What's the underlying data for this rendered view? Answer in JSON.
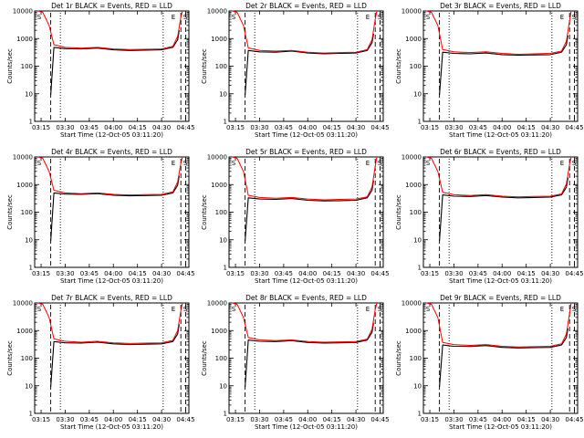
{
  "colors": {
    "events": "#000000",
    "lld": "#ff0000",
    "background": "#ffffff",
    "axes": "#000000"
  },
  "chart_data": [
    {
      "type": "line",
      "title": "Det 1r BLACK = Events, RED = LLD",
      "xlabel": "Start Time (12-Oct-05 03:11:20)",
      "ylabel": "Counts/sec",
      "yscale": "log",
      "ylim": [
        1,
        10000
      ],
      "x_tick_labels": [
        "03:15",
        "03:30",
        "03:45",
        "04:00",
        "04:15",
        "04:30",
        "04:45"
      ],
      "y_tick_labels": [
        "1",
        "10",
        "100",
        "1000",
        "10000"
      ],
      "markers": [
        "S",
        "E",
        "S"
      ],
      "vlines": {
        "dashed": [
          "03:21",
          "04:42",
          "04:45"
        ],
        "dotted": [
          "03:27",
          "04:31"
        ]
      },
      "series": [
        {
          "color": "#000000",
          "x": [
            "03:21",
            "03:23",
            "03:30",
            "03:40",
            "03:50",
            "04:00",
            "04:10",
            "04:20",
            "04:30",
            "04:37",
            "04:40",
            "04:41"
          ],
          "values": [
            9,
            480,
            430,
            420,
            450,
            390,
            370,
            380,
            390,
            480,
            900,
            2000
          ]
        },
        {
          "color": "#ff0000",
          "x": [
            "03:13",
            "03:16",
            "03:20",
            "03:23",
            "03:30",
            "03:40",
            "03:50",
            "04:00",
            "04:10",
            "04:20",
            "04:30",
            "04:37",
            "04:40",
            "04:42",
            "04:43"
          ],
          "values": [
            10000,
            9000,
            3000,
            600,
            480,
            450,
            480,
            420,
            400,
            410,
            420,
            520,
            1200,
            6000,
            10000
          ]
        }
      ]
    },
    {
      "type": "line",
      "title": "Det 2r BLACK = Events, RED = LLD",
      "xlabel": "Start Time (12-Oct-05 03:11:20)",
      "ylabel": "Counts/sec",
      "yscale": "log",
      "ylim": [
        1,
        10000
      ],
      "x_tick_labels": [
        "03:15",
        "03:30",
        "03:45",
        "04:00",
        "04:15",
        "04:30",
        "04:45"
      ],
      "y_tick_labels": [
        "1",
        "10",
        "100",
        "1000",
        "10000"
      ],
      "markers": [
        "S",
        "E",
        "S"
      ],
      "vlines": {
        "dashed": [
          "03:21",
          "04:42",
          "04:45"
        ],
        "dotted": [
          "03:27",
          "04:31"
        ]
      },
      "series": [
        {
          "color": "#000000",
          "x": [
            "03:21",
            "03:23",
            "03:30",
            "03:40",
            "03:50",
            "04:00",
            "04:10",
            "04:20",
            "04:30",
            "04:37",
            "04:40",
            "04:41"
          ],
          "values": [
            9,
            370,
            330,
            320,
            350,
            300,
            280,
            290,
            300,
            370,
            700,
            1500
          ]
        },
        {
          "color": "#ff0000",
          "x": [
            "03:13",
            "03:16",
            "03:20",
            "03:23",
            "03:30",
            "03:40",
            "03:50",
            "04:00",
            "04:10",
            "04:20",
            "04:30",
            "04:37",
            "04:40",
            "04:42",
            "04:43"
          ],
          "values": [
            10000,
            9000,
            3000,
            460,
            370,
            350,
            370,
            320,
            300,
            310,
            320,
            400,
            900,
            5000,
            10000
          ]
        }
      ]
    },
    {
      "type": "line",
      "title": "Det 3r BLACK = Events, RED = LLD",
      "xlabel": "Start Time (12-Oct-05 03:11:20)",
      "ylabel": "Counts/sec",
      "yscale": "log",
      "ylim": [
        1,
        10000
      ],
      "x_tick_labels": [
        "03:15",
        "03:30",
        "03:45",
        "04:00",
        "04:15",
        "04:30",
        "04:45"
      ],
      "y_tick_labels": [
        "1",
        "10",
        "100",
        "1000",
        "10000"
      ],
      "markers": [
        "S",
        "E",
        "S"
      ],
      "vlines": {
        "dashed": [
          "03:21",
          "04:42",
          "04:45"
        ],
        "dotted": [
          "03:27",
          "04:31"
        ]
      },
      "series": [
        {
          "color": "#000000",
          "x": [
            "03:21",
            "03:23",
            "03:30",
            "03:40",
            "03:50",
            "04:00",
            "04:10",
            "04:20",
            "04:30",
            "04:37",
            "04:40",
            "04:41"
          ],
          "values": [
            9,
            320,
            290,
            280,
            300,
            260,
            250,
            255,
            260,
            320,
            600,
            1300
          ]
        },
        {
          "color": "#ff0000",
          "x": [
            "03:13",
            "03:16",
            "03:20",
            "03:23",
            "03:30",
            "03:40",
            "03:50",
            "04:00",
            "04:10",
            "04:20",
            "04:30",
            "04:37",
            "04:40",
            "04:42",
            "04:43"
          ],
          "values": [
            10000,
            9000,
            3000,
            400,
            330,
            310,
            330,
            290,
            270,
            280,
            290,
            350,
            800,
            4500,
            10000
          ]
        }
      ]
    },
    {
      "type": "line",
      "title": "Det 4r BLACK = Events, RED = LLD",
      "xlabel": "Start Time (12-Oct-05 03:11:20)",
      "ylabel": "Counts/sec",
      "yscale": "log",
      "ylim": [
        1,
        10000
      ],
      "x_tick_labels": [
        "03:15",
        "03:30",
        "03:45",
        "04:00",
        "04:15",
        "04:30",
        "04:45"
      ],
      "y_tick_labels": [
        "1",
        "10",
        "100",
        "1000",
        "10000"
      ],
      "markers": [
        "S",
        "E",
        "S"
      ],
      "vlines": {
        "dashed": [
          "03:21",
          "04:42",
          "04:45"
        ],
        "dotted": [
          "03:27",
          "04:31"
        ]
      },
      "series": [
        {
          "color": "#000000",
          "x": [
            "03:21",
            "03:23",
            "03:30",
            "03:40",
            "03:50",
            "04:00",
            "04:10",
            "04:20",
            "04:30",
            "04:37",
            "04:40",
            "04:41"
          ],
          "values": [
            9,
            500,
            450,
            440,
            470,
            410,
            390,
            400,
            410,
            500,
            950,
            2100
          ]
        },
        {
          "color": "#ff0000",
          "x": [
            "03:13",
            "03:16",
            "03:20",
            "03:23",
            "03:30",
            "03:40",
            "03:50",
            "04:00",
            "04:10",
            "04:20",
            "04:30",
            "04:37",
            "04:40",
            "04:42",
            "04:43"
          ],
          "values": [
            10000,
            9000,
            3000,
            620,
            500,
            470,
            500,
            440,
            420,
            430,
            440,
            540,
            1250,
            6000,
            10000
          ]
        }
      ]
    },
    {
      "type": "line",
      "title": "Det 5r BLACK = Events, RED = LLD",
      "xlabel": "Start Time (12-Oct-05 03:11:20)",
      "ylabel": "Counts/sec",
      "yscale": "log",
      "ylim": [
        1,
        10000
      ],
      "x_tick_labels": [
        "03:15",
        "03:30",
        "03:45",
        "04:00",
        "04:15",
        "04:30",
        "04:45"
      ],
      "y_tick_labels": [
        "1",
        "10",
        "100",
        "1000",
        "10000"
      ],
      "markers": [
        "S",
        "E",
        "S"
      ],
      "vlines": {
        "dashed": [
          "03:21",
          "04:42",
          "04:45"
        ],
        "dotted": [
          "03:27",
          "04:31"
        ]
      },
      "series": [
        {
          "color": "#000000",
          "x": [
            "03:21",
            "03:23",
            "03:30",
            "03:40",
            "03:50",
            "04:00",
            "04:10",
            "04:20",
            "04:30",
            "04:37",
            "04:40",
            "04:41"
          ],
          "values": [
            9,
            330,
            300,
            290,
            310,
            270,
            255,
            260,
            270,
            330,
            620,
            1400
          ]
        },
        {
          "color": "#ff0000",
          "x": [
            "03:13",
            "03:16",
            "03:20",
            "03:23",
            "03:30",
            "03:40",
            "03:50",
            "04:00",
            "04:10",
            "04:20",
            "04:30",
            "04:37",
            "04:40",
            "04:42",
            "04:43"
          ],
          "values": [
            10000,
            9000,
            3000,
            410,
            340,
            320,
            340,
            300,
            280,
            290,
            300,
            360,
            820,
            4600,
            10000
          ]
        }
      ]
    },
    {
      "type": "line",
      "title": "Det 6r BLACK = Events, RED = LLD",
      "xlabel": "Start Time (12-Oct-05 03:11:20)",
      "ylabel": "Counts/sec",
      "yscale": "log",
      "ylim": [
        1,
        10000
      ],
      "x_tick_labels": [
        "03:15",
        "03:30",
        "03:45",
        "04:00",
        "04:15",
        "04:30",
        "04:45"
      ],
      "y_tick_labels": [
        "1",
        "10",
        "100",
        "1000",
        "10000"
      ],
      "markers": [
        "S",
        "E",
        "S"
      ],
      "vlines": {
        "dashed": [
          "03:21",
          "04:42",
          "04:45"
        ],
        "dotted": [
          "03:27",
          "04:31"
        ]
      },
      "series": [
        {
          "color": "#000000",
          "x": [
            "03:21",
            "03:23",
            "03:30",
            "03:40",
            "03:50",
            "04:00",
            "04:10",
            "04:20",
            "04:30",
            "04:37",
            "04:40",
            "04:41"
          ],
          "values": [
            9,
            420,
            380,
            370,
            400,
            350,
            330,
            340,
            350,
            420,
            800,
            1800
          ]
        },
        {
          "color": "#ff0000",
          "x": [
            "03:13",
            "03:16",
            "03:20",
            "03:23",
            "03:30",
            "03:40",
            "03:50",
            "04:00",
            "04:10",
            "04:20",
            "04:30",
            "04:37",
            "04:40",
            "04:42",
            "04:43"
          ],
          "values": [
            10000,
            9000,
            3000,
            520,
            430,
            400,
            430,
            380,
            360,
            370,
            380,
            460,
            1050,
            5500,
            10000
          ]
        }
      ]
    },
    {
      "type": "line",
      "title": "Det 7r BLACK = Events, RED = LLD",
      "xlabel": "Start Time (12-Oct-05 03:11:20)",
      "ylabel": "Counts/sec",
      "yscale": "log",
      "ylim": [
        1,
        10000
      ],
      "x_tick_labels": [
        "03:15",
        "03:30",
        "03:45",
        "04:00",
        "04:15",
        "04:30",
        "04:45"
      ],
      "y_tick_labels": [
        "1",
        "10",
        "100",
        "1000",
        "10000"
      ],
      "markers": [
        "S",
        "E",
        "S"
      ],
      "vlines": {
        "dashed": [
          "03:21",
          "04:42",
          "04:45"
        ],
        "dotted": [
          "03:27",
          "04:31"
        ]
      },
      "series": [
        {
          "color": "#000000",
          "x": [
            "03:21",
            "03:23",
            "03:30",
            "03:40",
            "03:50",
            "04:00",
            "04:10",
            "04:20",
            "04:30",
            "04:37",
            "04:40",
            "04:41"
          ],
          "values": [
            9,
            400,
            360,
            350,
            380,
            330,
            310,
            320,
            330,
            400,
            760,
            1700
          ]
        },
        {
          "color": "#ff0000",
          "x": [
            "03:13",
            "03:16",
            "03:20",
            "03:23",
            "03:30",
            "03:40",
            "03:50",
            "04:00",
            "04:10",
            "04:20",
            "04:30",
            "04:37",
            "04:40",
            "04:42",
            "04:43"
          ],
          "values": [
            10000,
            9000,
            3000,
            500,
            410,
            380,
            410,
            360,
            340,
            350,
            360,
            440,
            1000,
            5300,
            10000
          ]
        }
      ]
    },
    {
      "type": "line",
      "title": "Det 8r BLACK = Events, RED = LLD",
      "xlabel": "Start Time (12-Oct-05 03:11:20)",
      "ylabel": "Counts/sec",
      "yscale": "log",
      "ylim": [
        1,
        10000
      ],
      "x_tick_labels": [
        "03:15",
        "03:30",
        "03:45",
        "04:00",
        "04:15",
        "04:30",
        "04:45"
      ],
      "y_tick_labels": [
        "1",
        "10",
        "100",
        "1000",
        "10000"
      ],
      "markers": [
        "S",
        "E",
        "S"
      ],
      "vlines": {
        "dashed": [
          "03:21",
          "04:42",
          "04:45"
        ],
        "dotted": [
          "03:27",
          "04:31"
        ]
      },
      "series": [
        {
          "color": "#000000",
          "x": [
            "03:21",
            "03:23",
            "03:30",
            "03:40",
            "03:50",
            "04:00",
            "04:10",
            "04:20",
            "04:30",
            "04:37",
            "04:40",
            "04:41"
          ],
          "values": [
            9,
            450,
            410,
            400,
            430,
            370,
            350,
            360,
            370,
            450,
            860,
            1900
          ]
        },
        {
          "color": "#ff0000",
          "x": [
            "03:13",
            "03:16",
            "03:20",
            "03:23",
            "03:30",
            "03:40",
            "03:50",
            "04:00",
            "04:10",
            "04:20",
            "04:30",
            "04:37",
            "04:40",
            "04:42",
            "04:43"
          ],
          "values": [
            10000,
            9000,
            3000,
            560,
            460,
            430,
            460,
            400,
            380,
            390,
            400,
            490,
            1100,
            5800,
            10000
          ]
        }
      ]
    },
    {
      "type": "line",
      "title": "Det 9r BLACK = Events, RED = LLD",
      "xlabel": "Start Time (12-Oct-05 03:11:20)",
      "ylabel": "Counts/sec",
      "yscale": "log",
      "ylim": [
        1,
        10000
      ],
      "x_tick_labels": [
        "03:15",
        "03:30",
        "03:45",
        "04:00",
        "04:15",
        "04:30",
        "04:45"
      ],
      "y_tick_labels": [
        "1",
        "10",
        "100",
        "1000",
        "10000"
      ],
      "markers": [
        "S",
        "E",
        "S"
      ],
      "vlines": {
        "dashed": [
          "03:21",
          "04:42",
          "04:45"
        ],
        "dotted": [
          "03:27",
          "04:31"
        ]
      },
      "series": [
        {
          "color": "#000000",
          "x": [
            "03:21",
            "03:23",
            "03:30",
            "03:40",
            "03:50",
            "04:00",
            "04:10",
            "04:20",
            "04:30",
            "04:37",
            "04:40",
            "04:41"
          ],
          "values": [
            9,
            300,
            270,
            265,
            285,
            245,
            235,
            240,
            245,
            300,
            560,
            1200
          ]
        },
        {
          "color": "#ff0000",
          "x": [
            "03:13",
            "03:16",
            "03:20",
            "03:23",
            "03:30",
            "03:40",
            "03:50",
            "04:00",
            "04:10",
            "04:20",
            "04:30",
            "04:37",
            "04:40",
            "04:42",
            "04:43"
          ],
          "values": [
            10000,
            9000,
            3000,
            370,
            310,
            290,
            310,
            270,
            255,
            260,
            270,
            330,
            750,
            4200,
            10000
          ]
        }
      ]
    }
  ]
}
